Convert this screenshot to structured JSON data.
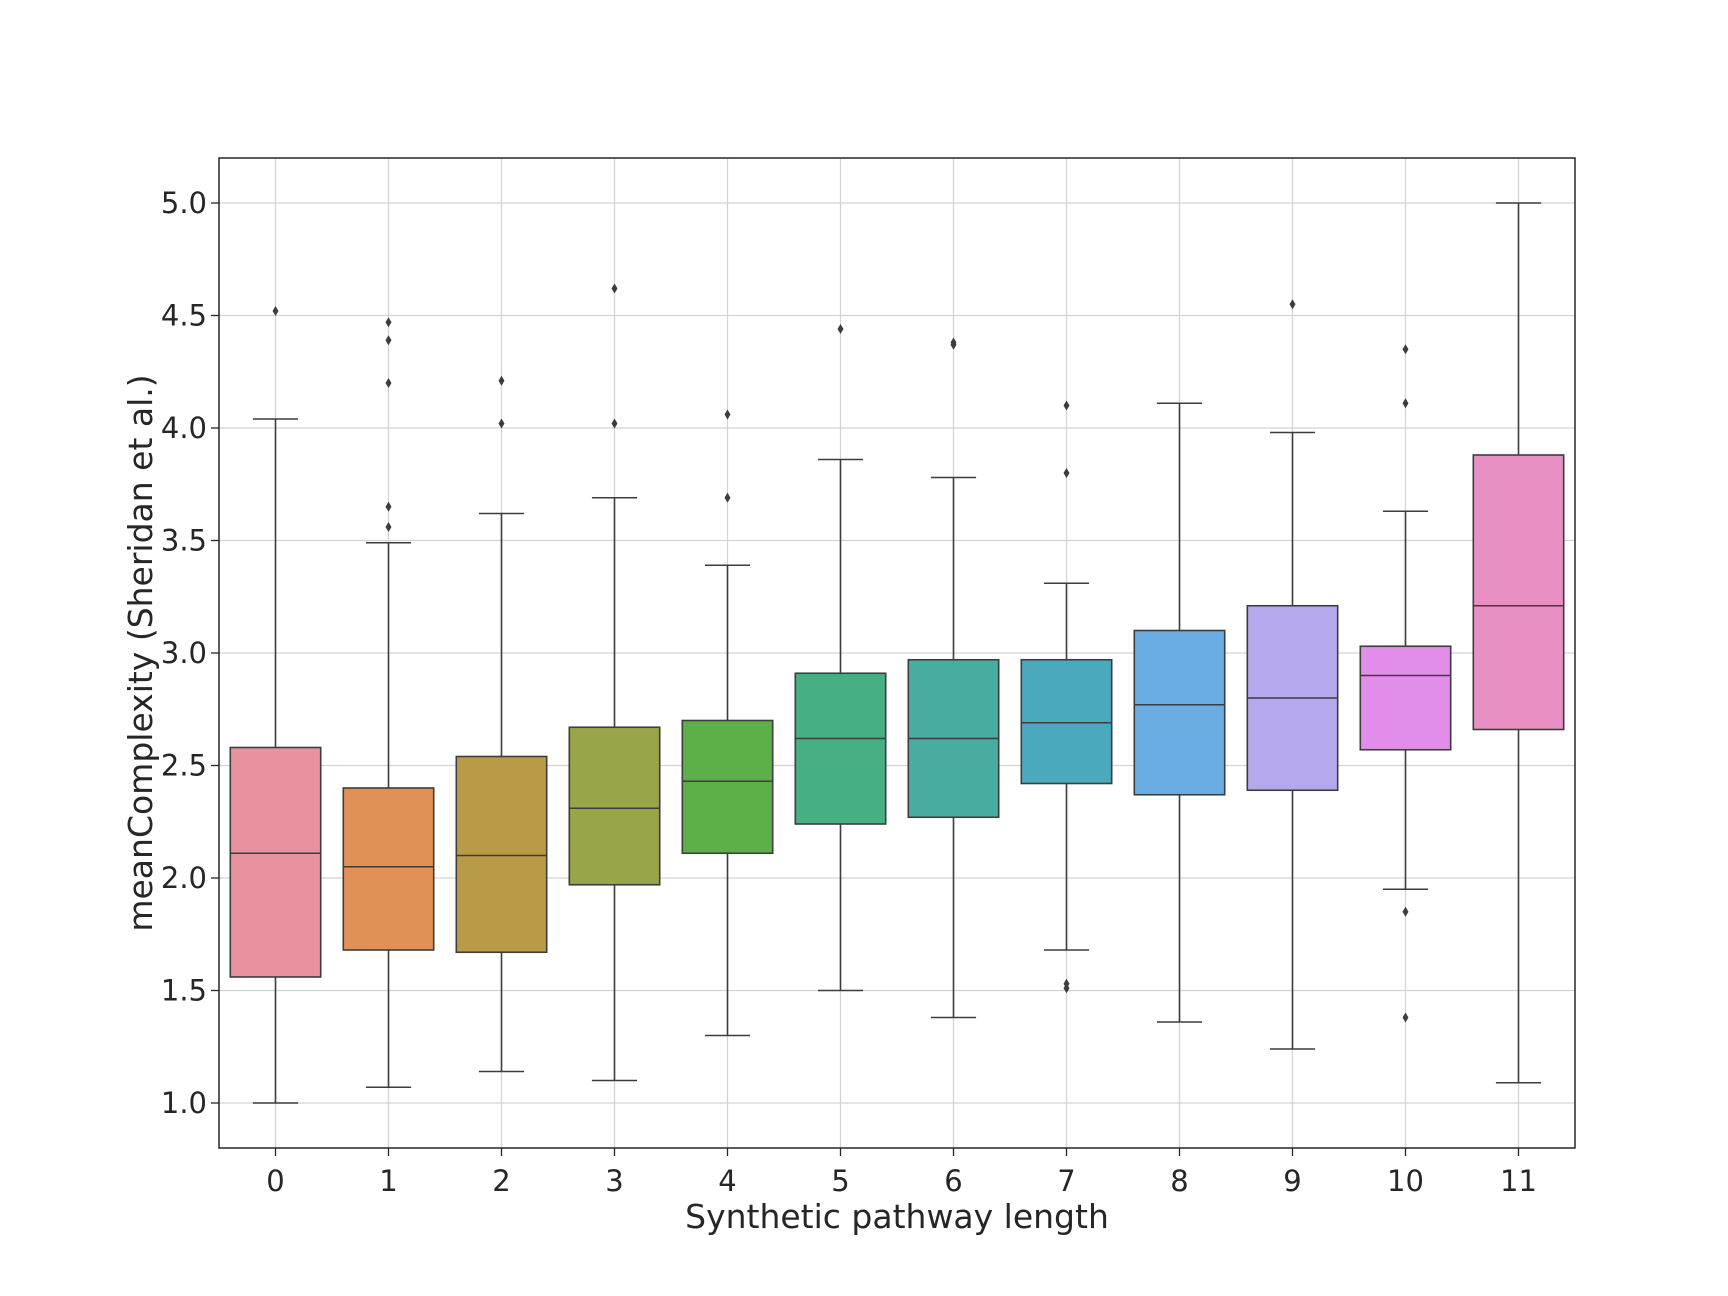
{
  "chart_data": {
    "type": "boxplot",
    "title": "",
    "xlabel": "Synthetic pathway length",
    "ylabel": "meanComplexity (Sheridan et al.)",
    "ylim": [
      0.8,
      5.2
    ],
    "yticks": [
      1.0,
      1.5,
      2.0,
      2.5,
      3.0,
      3.5,
      4.0,
      4.5,
      5.0
    ],
    "ytick_labels": [
      "1.0",
      "1.5",
      "2.0",
      "2.5",
      "3.0",
      "3.5",
      "4.0",
      "4.5",
      "5.0"
    ],
    "grid": true,
    "categories": [
      "0",
      "1",
      "2",
      "3",
      "4",
      "5",
      "6",
      "7",
      "8",
      "9",
      "10",
      "11"
    ],
    "boxes": [
      {
        "category": "0",
        "whisker_low": 1.0,
        "q1": 1.56,
        "median": 2.11,
        "q3": 2.58,
        "whisker_high": 4.04,
        "outliers": [
          4.52
        ],
        "color": "#e8929f"
      },
      {
        "category": "1",
        "whisker_low": 1.07,
        "q1": 1.68,
        "median": 2.05,
        "q3": 2.4,
        "whisker_high": 3.49,
        "outliers": [
          3.56,
          3.65,
          4.2,
          4.39,
          4.47
        ],
        "color": "#e09155"
      },
      {
        "category": "2",
        "whisker_low": 1.14,
        "q1": 1.67,
        "median": 2.1,
        "q3": 2.54,
        "whisker_high": 3.62,
        "outliers": [
          4.02,
          4.21
        ],
        "color": "#b89a47"
      },
      {
        "category": "3",
        "whisker_low": 1.1,
        "q1": 1.97,
        "median": 2.31,
        "q3": 2.67,
        "whisker_high": 3.69,
        "outliers": [
          4.02,
          4.62
        ],
        "color": "#99a548"
      },
      {
        "category": "4",
        "whisker_low": 1.3,
        "q1": 2.11,
        "median": 2.43,
        "q3": 2.7,
        "whisker_high": 3.39,
        "outliers": [
          3.69,
          4.06
        ],
        "color": "#5daf48"
      },
      {
        "category": "5",
        "whisker_low": 1.5,
        "q1": 2.24,
        "median": 2.62,
        "q3": 2.91,
        "whisker_high": 3.86,
        "outliers": [
          4.44
        ],
        "color": "#47b083"
      },
      {
        "category": "6",
        "whisker_low": 1.38,
        "q1": 2.27,
        "median": 2.62,
        "q3": 2.97,
        "whisker_high": 3.78,
        "outliers": [
          4.37,
          4.38
        ],
        "color": "#47ada0"
      },
      {
        "category": "7",
        "whisker_low": 1.68,
        "q1": 2.42,
        "median": 2.69,
        "q3": 2.97,
        "whisker_high": 3.31,
        "outliers": [
          1.51,
          1.53,
          3.8,
          4.1
        ],
        "color": "#4aa9bc"
      },
      {
        "category": "8",
        "whisker_low": 1.36,
        "q1": 2.37,
        "median": 2.77,
        "q3": 3.1,
        "whisker_high": 4.11,
        "outliers": [],
        "color": "#6aade3"
      },
      {
        "category": "9",
        "whisker_low": 1.24,
        "q1": 2.39,
        "median": 2.8,
        "q3": 3.21,
        "whisker_high": 3.98,
        "outliers": [
          4.55
        ],
        "color": "#b5a8ec"
      },
      {
        "category": "10",
        "whisker_low": 1.95,
        "q1": 2.57,
        "median": 2.9,
        "q3": 3.03,
        "whisker_high": 3.63,
        "outliers": [
          1.38,
          1.85,
          4.11,
          4.35
        ],
        "color": "#e18de9"
      },
      {
        "category": "11",
        "whisker_low": 1.09,
        "q1": 2.66,
        "median": 3.21,
        "q3": 3.88,
        "whisker_high": 5.0,
        "outliers": [],
        "color": "#e890c4"
      }
    ]
  }
}
